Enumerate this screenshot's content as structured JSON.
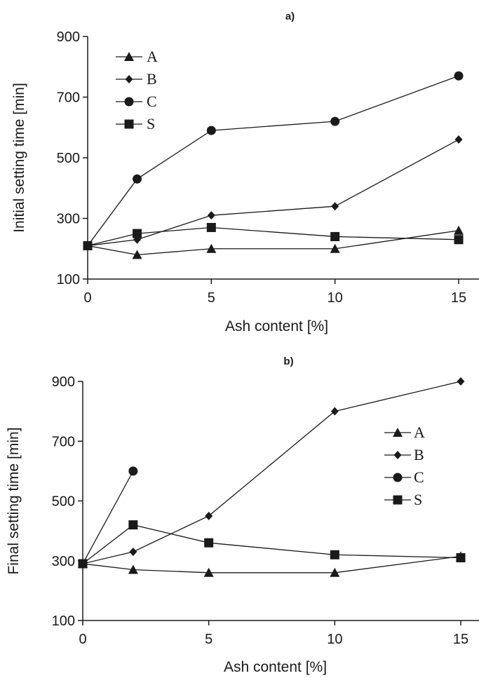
{
  "chart_data": [
    {
      "type": "line",
      "title": "a)",
      "xlabel": "Ash content [%]",
      "ylabel": "Initial setting time [min]",
      "xlim": [
        0,
        15
      ],
      "ylim": [
        100,
        900
      ],
      "xticks": [
        0,
        5,
        10,
        15
      ],
      "yticks": [
        100,
        300,
        500,
        700,
        900
      ],
      "grid": false,
      "legend_position": "top-left",
      "series": [
        {
          "name": "A",
          "marker": "triangle",
          "x": [
            0,
            2,
            5,
            10,
            15
          ],
          "y": [
            210,
            180,
            200,
            200,
            260
          ]
        },
        {
          "name": "B",
          "marker": "diamond",
          "x": [
            0,
            2,
            5,
            10,
            15
          ],
          "y": [
            210,
            230,
            310,
            340,
            560
          ]
        },
        {
          "name": "C",
          "marker": "circle",
          "x": [
            0,
            2,
            5,
            10,
            15
          ],
          "y": [
            210,
            430,
            590,
            620,
            770
          ]
        },
        {
          "name": "S",
          "marker": "square",
          "x": [
            0,
            2,
            5,
            10,
            15
          ],
          "y": [
            210,
            250,
            270,
            240,
            230
          ]
        }
      ]
    },
    {
      "type": "line",
      "title": "b)",
      "xlabel": "Ash content [%]",
      "ylabel": "Final setting time [min]",
      "xlim": [
        0,
        15
      ],
      "ylim": [
        100,
        900
      ],
      "xticks": [
        0,
        5,
        10,
        15
      ],
      "yticks": [
        100,
        300,
        500,
        700,
        900
      ],
      "grid": false,
      "legend_position": "right",
      "series": [
        {
          "name": "A",
          "marker": "triangle",
          "x": [
            0,
            2,
            5,
            10,
            15
          ],
          "y": [
            290,
            270,
            260,
            260,
            315
          ]
        },
        {
          "name": "B",
          "marker": "diamond",
          "x": [
            0,
            2,
            5,
            10,
            15
          ],
          "y": [
            290,
            330,
            450,
            800,
            900
          ]
        },
        {
          "name": "C",
          "marker": "circle",
          "x": [
            0,
            2
          ],
          "y": [
            290,
            600
          ]
        },
        {
          "name": "S",
          "marker": "square",
          "x": [
            0,
            2,
            5,
            10,
            15
          ],
          "y": [
            290,
            420,
            360,
            320,
            310
          ]
        }
      ]
    }
  ],
  "colors": {
    "ink": "#1a1a1a",
    "background": "#ffffff"
  }
}
